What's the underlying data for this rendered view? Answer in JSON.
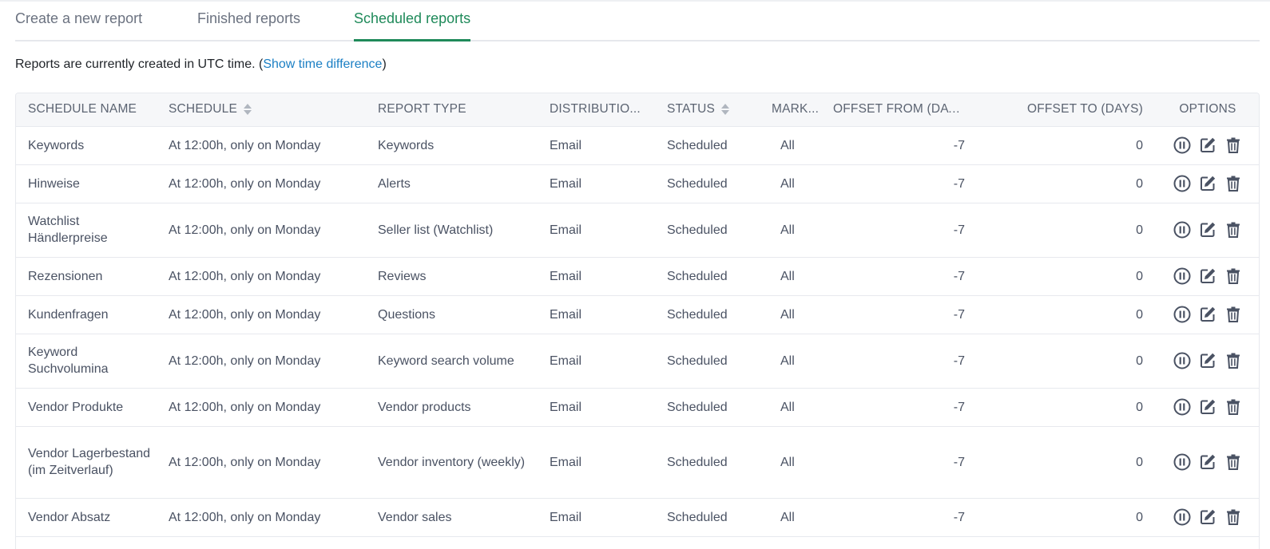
{
  "tabs": [
    {
      "label": "Create a new report",
      "active": false
    },
    {
      "label": "Finished reports",
      "active": false
    },
    {
      "label": "Scheduled reports",
      "active": true
    }
  ],
  "info": {
    "prefix": "Reports are currently created in UTC time. (",
    "link": "Show time difference",
    "suffix": ")"
  },
  "columns": {
    "name": "SCHEDULE NAME",
    "schedule": "SCHEDULE",
    "type": "REPORT TYPE",
    "distribution": "DISTRIBUTIO...",
    "status": "STATUS",
    "market": "MARK...",
    "offset_from": "OFFSET FROM (DAY...",
    "offset_to": "OFFSET TO (DAYS)",
    "options": "OPTIONS"
  },
  "rows": [
    {
      "name": "Keywords",
      "schedule": "At 12:00h, only on Monday",
      "type": "Keywords",
      "distribution": "Email",
      "status": "Scheduled",
      "market": "All",
      "offset_from": "-7",
      "offset_to": "0"
    },
    {
      "name": "Hinweise",
      "schedule": "At 12:00h, only on Monday",
      "type": "Alerts",
      "distribution": "Email",
      "status": "Scheduled",
      "market": "All",
      "offset_from": "-7",
      "offset_to": "0"
    },
    {
      "name": "Watchlist Händlerpreise",
      "schedule": "At 12:00h, only on Monday",
      "type": "Seller list (Watchlist)",
      "distribution": "Email",
      "status": "Scheduled",
      "market": "All",
      "offset_from": "-7",
      "offset_to": "0"
    },
    {
      "name": "Rezensionen",
      "schedule": "At 12:00h, only on Monday",
      "type": "Reviews",
      "distribution": "Email",
      "status": "Scheduled",
      "market": "All",
      "offset_from": "-7",
      "offset_to": "0"
    },
    {
      "name": "Kundenfragen",
      "schedule": "At 12:00h, only on Monday",
      "type": "Questions",
      "distribution": "Email",
      "status": "Scheduled",
      "market": "All",
      "offset_from": "-7",
      "offset_to": "0"
    },
    {
      "name": "Keyword Suchvolumina",
      "schedule": "At 12:00h, only on Monday",
      "type": "Keyword search volume",
      "distribution": "Email",
      "status": "Scheduled",
      "market": "All",
      "offset_from": "-7",
      "offset_to": "0"
    },
    {
      "name": "Vendor Produkte",
      "schedule": "At 12:00h, only on Monday",
      "type": "Vendor products",
      "distribution": "Email",
      "status": "Scheduled",
      "market": "All",
      "offset_from": "-7",
      "offset_to": "0"
    },
    {
      "name": "Vendor Lagerbestand (im Zeitverlauf)",
      "schedule": "At 12:00h, only on Monday",
      "type": "Vendor inventory (weekly)",
      "distribution": "Email",
      "status": "Scheduled",
      "market": "All",
      "offset_from": "-7",
      "offset_to": "0"
    },
    {
      "name": "Vendor Absatz",
      "schedule": "At 12:00h, only on Monday",
      "type": "Vendor sales",
      "distribution": "Email",
      "status": "Scheduled",
      "market": "All",
      "offset_from": "-7",
      "offset_to": "0"
    }
  ],
  "option_icons": [
    "pause-icon",
    "edit-icon",
    "trash-icon"
  ],
  "colors": {
    "accent": "#1f8a5a",
    "link": "#1b7fc4",
    "text": "#4a5263",
    "header_bg": "#f6f7f9"
  }
}
